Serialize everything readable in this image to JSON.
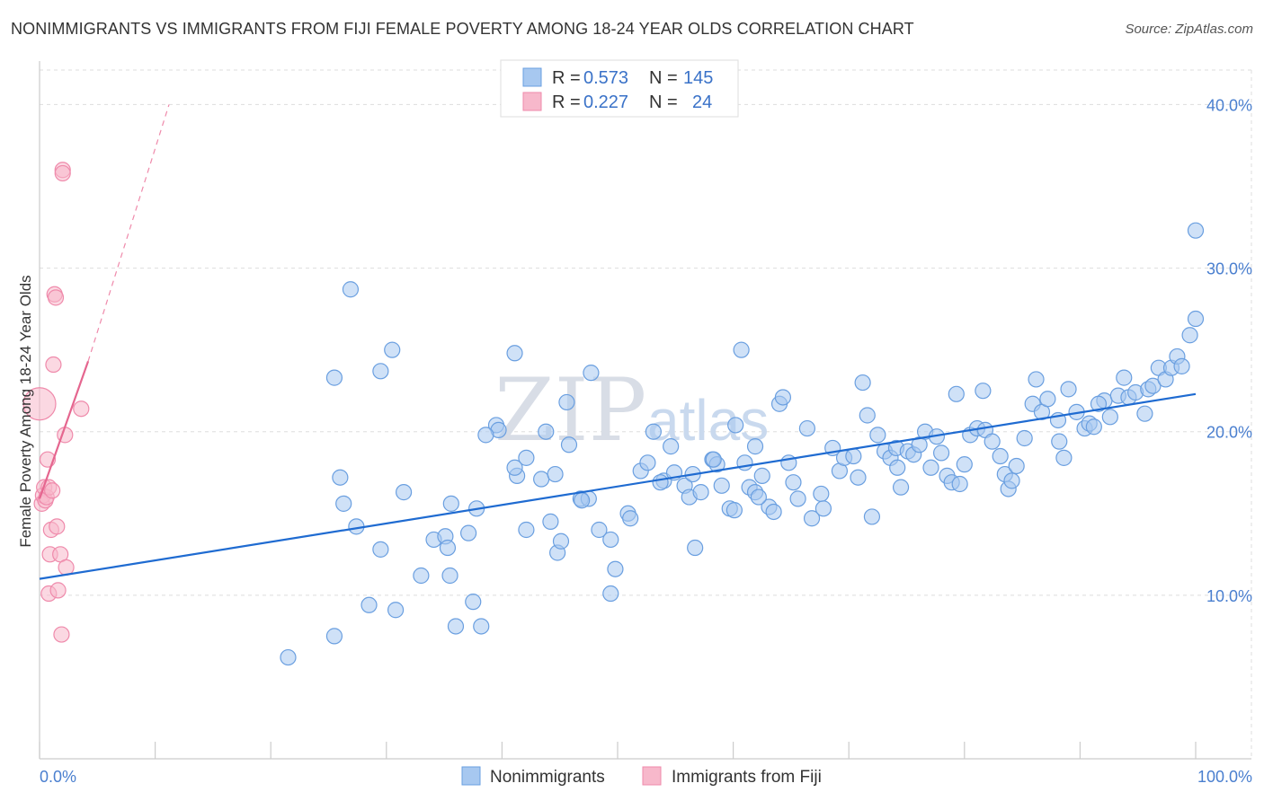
{
  "header": {
    "title": "NONIMMIGRANTS VS IMMIGRANTS FROM FIJI FEMALE POVERTY AMONG 18-24 YEAR OLDS CORRELATION CHART",
    "source": "Source: ZipAtlas.com"
  },
  "watermark": {
    "zip": "ZIP",
    "atlas": "atlas"
  },
  "legend": {
    "rows": [
      {
        "r_label": "R =",
        "r_value": "0.573",
        "n_label": "N =",
        "n_value": "145",
        "color": "#a7c8f0"
      },
      {
        "r_label": "R =",
        "r_value": "0.227",
        "n_label": "N =",
        "n_value": "24",
        "color": "#f7b8cb"
      }
    ]
  },
  "bottom_legend": [
    {
      "label": "Nonimmigrants",
      "color": "#a7c8f0"
    },
    {
      "label": "Immigrants from Fiji",
      "color": "#f7b8cb"
    }
  ],
  "colors": {
    "blue_fill": "#a7c8f0",
    "blue_stroke": "#6a9fe0",
    "blue_line": "#1f6bd1",
    "pink_fill": "#f7b8cb",
    "pink_stroke": "#ef8aab",
    "pink_line": "#e5668f",
    "grid": "#dddddd",
    "axis": "#cccccc"
  },
  "chart_data": {
    "type": "scatter",
    "title": "NONIMMIGRANTS VS IMMIGRANTS FROM FIJI FEMALE POVERTY AMONG 18-24 YEAR OLDS CORRELATION CHART",
    "xlabel": "",
    "ylabel": "Female Poverty Among 18-24 Year Olds",
    "xlim": [
      0,
      100
    ],
    "ylim": [
      0,
      42
    ],
    "x_tick_labels": [
      "0.0%",
      "100.0%"
    ],
    "y_ticks": [
      10,
      20,
      30,
      40
    ],
    "y_tick_labels": [
      "10.0%",
      "20.0%",
      "30.0%",
      "40.0%"
    ],
    "series": [
      {
        "name": "Nonimmigrants",
        "r": 0.573,
        "n": 145,
        "trend": {
          "x": [
            0,
            100
          ],
          "y": [
            11.0,
            22.3
          ],
          "style": "solid"
        },
        "points": [
          [
            21.5,
            6.2
          ],
          [
            25.5,
            7.5
          ],
          [
            28.5,
            9.4
          ],
          [
            30.8,
            9.1
          ],
          [
            36.0,
            8.1
          ],
          [
            38.2,
            8.1
          ],
          [
            37.5,
            9.6
          ],
          [
            33.0,
            11.2
          ],
          [
            35.5,
            11.2
          ],
          [
            29.5,
            12.8
          ],
          [
            25.5,
            23.3
          ],
          [
            26.0,
            17.2
          ],
          [
            26.3,
            15.6
          ],
          [
            27.4,
            14.2
          ],
          [
            26.9,
            28.7
          ],
          [
            29.5,
            23.7
          ],
          [
            30.5,
            25.0
          ],
          [
            31.5,
            16.3
          ],
          [
            34.1,
            13.4
          ],
          [
            35.1,
            13.6
          ],
          [
            35.6,
            15.6
          ],
          [
            35.3,
            12.9
          ],
          [
            37.1,
            13.8
          ],
          [
            37.8,
            15.3
          ],
          [
            39.5,
            20.4
          ],
          [
            39.7,
            20.1
          ],
          [
            41.1,
            24.8
          ],
          [
            41.3,
            17.3
          ],
          [
            42.1,
            18.4
          ],
          [
            42.1,
            14.0
          ],
          [
            43.4,
            17.1
          ],
          [
            43.8,
            20.0
          ],
          [
            44.2,
            14.5
          ],
          [
            44.8,
            12.6
          ],
          [
            44.6,
            17.4
          ],
          [
            45.1,
            13.3
          ],
          [
            45.6,
            21.8
          ],
          [
            45.8,
            19.2
          ],
          [
            46.8,
            15.9
          ],
          [
            47.5,
            15.9
          ],
          [
            47.7,
            23.6
          ],
          [
            48.4,
            14.0
          ],
          [
            49.4,
            13.4
          ],
          [
            49.8,
            11.6
          ],
          [
            49.4,
            10.1
          ],
          [
            50.9,
            15.0
          ],
          [
            51.1,
            14.7
          ],
          [
            52.0,
            17.6
          ],
          [
            52.6,
            18.1
          ],
          [
            53.1,
            20.0
          ],
          [
            54.0,
            17.0
          ],
          [
            54.6,
            19.1
          ],
          [
            54.9,
            17.5
          ],
          [
            55.8,
            16.7
          ],
          [
            56.2,
            16.0
          ],
          [
            56.7,
            12.9
          ],
          [
            57.2,
            16.3
          ],
          [
            58.2,
            18.3
          ],
          [
            58.6,
            18.0
          ],
          [
            59.0,
            16.7
          ],
          [
            59.7,
            15.3
          ],
          [
            60.1,
            15.2
          ],
          [
            60.7,
            25.0
          ],
          [
            61.0,
            18.1
          ],
          [
            61.4,
            16.6
          ],
          [
            61.9,
            16.3
          ],
          [
            62.5,
            17.3
          ],
          [
            63.1,
            15.4
          ],
          [
            63.5,
            15.1
          ],
          [
            64.0,
            21.7
          ],
          [
            64.3,
            22.1
          ],
          [
            64.8,
            18.1
          ],
          [
            65.2,
            16.9
          ],
          [
            65.6,
            15.9
          ],
          [
            66.4,
            20.2
          ],
          [
            66.8,
            14.7
          ],
          [
            67.6,
            16.2
          ],
          [
            67.8,
            15.3
          ],
          [
            68.6,
            19.0
          ],
          [
            69.2,
            17.6
          ],
          [
            69.6,
            18.4
          ],
          [
            70.4,
            18.5
          ],
          [
            70.8,
            17.2
          ],
          [
            71.2,
            23.0
          ],
          [
            71.6,
            21.0
          ],
          [
            72.0,
            14.8
          ],
          [
            72.5,
            19.8
          ],
          [
            73.1,
            18.8
          ],
          [
            73.6,
            18.4
          ],
          [
            74.1,
            19.0
          ],
          [
            74.5,
            16.6
          ],
          [
            75.1,
            18.8
          ],
          [
            75.6,
            18.6
          ],
          [
            76.1,
            19.2
          ],
          [
            76.6,
            20.0
          ],
          [
            77.1,
            17.8
          ],
          [
            77.6,
            19.7
          ],
          [
            78.0,
            18.7
          ],
          [
            78.5,
            17.3
          ],
          [
            78.9,
            16.9
          ],
          [
            79.3,
            22.3
          ],
          [
            80.0,
            18.0
          ],
          [
            80.5,
            19.8
          ],
          [
            81.1,
            20.2
          ],
          [
            81.6,
            22.5
          ],
          [
            81.8,
            20.1
          ],
          [
            82.4,
            19.4
          ],
          [
            83.5,
            17.4
          ],
          [
            83.8,
            16.5
          ],
          [
            84.1,
            17.0
          ],
          [
            84.5,
            17.9
          ],
          [
            85.2,
            19.6
          ],
          [
            85.9,
            21.7
          ],
          [
            86.2,
            23.2
          ],
          [
            86.7,
            21.2
          ],
          [
            87.2,
            22.0
          ],
          [
            88.2,
            19.4
          ],
          [
            88.6,
            18.4
          ],
          [
            89.0,
            22.6
          ],
          [
            89.7,
            21.2
          ],
          [
            90.4,
            20.2
          ],
          [
            90.8,
            20.5
          ],
          [
            91.2,
            20.3
          ],
          [
            92.1,
            21.9
          ],
          [
            92.6,
            20.9
          ],
          [
            93.3,
            22.2
          ],
          [
            93.8,
            23.3
          ],
          [
            94.2,
            22.1
          ],
          [
            94.8,
            22.4
          ],
          [
            95.6,
            21.1
          ],
          [
            95.9,
            22.6
          ],
          [
            96.3,
            22.8
          ],
          [
            96.8,
            23.9
          ],
          [
            97.4,
            23.2
          ],
          [
            97.9,
            23.9
          ],
          [
            98.4,
            24.6
          ],
          [
            98.8,
            24.0
          ],
          [
            99.5,
            25.9
          ],
          [
            100.0,
            26.9
          ],
          [
            100.0,
            32.3
          ],
          [
            91.6,
            21.7
          ],
          [
            88.1,
            20.7
          ],
          [
            58.3,
            18.3
          ],
          [
            46.9,
            15.8
          ],
          [
            53.7,
            16.9
          ],
          [
            62.2,
            16.0
          ],
          [
            74.2,
            17.8
          ],
          [
            79.6,
            16.8
          ],
          [
            38.6,
            19.8
          ],
          [
            60.2,
            20.4
          ],
          [
            41.1,
            17.8
          ],
          [
            56.5,
            17.4
          ],
          [
            83.1,
            18.5
          ],
          [
            61.9,
            19.1
          ]
        ]
      },
      {
        "name": "Immigrants from Fiji",
        "r": 0.227,
        "n": 24,
        "trend": {
          "x": [
            0,
            4.2
          ],
          "y": [
            15.9,
            24.3
          ],
          "style": "solid",
          "extended_to": [
            11.2,
            40.0
          ]
        },
        "points": [
          [
            0.0,
            21.7
          ],
          [
            0.2,
            15.6
          ],
          [
            0.3,
            16.1
          ],
          [
            0.4,
            16.6
          ],
          [
            0.5,
            15.8
          ],
          [
            0.6,
            16.0
          ],
          [
            0.7,
            18.3
          ],
          [
            0.8,
            16.6
          ],
          [
            0.8,
            10.1
          ],
          [
            0.9,
            12.5
          ],
          [
            1.0,
            14.0
          ],
          [
            1.1,
            16.4
          ],
          [
            1.2,
            24.1
          ],
          [
            1.3,
            28.4
          ],
          [
            1.4,
            28.2
          ],
          [
            1.5,
            14.2
          ],
          [
            1.6,
            10.3
          ],
          [
            1.8,
            12.5
          ],
          [
            1.9,
            7.6
          ],
          [
            2.0,
            36.0
          ],
          [
            2.0,
            35.8
          ],
          [
            2.2,
            19.8
          ],
          [
            2.3,
            11.7
          ],
          [
            3.6,
            21.4
          ]
        ]
      }
    ]
  }
}
